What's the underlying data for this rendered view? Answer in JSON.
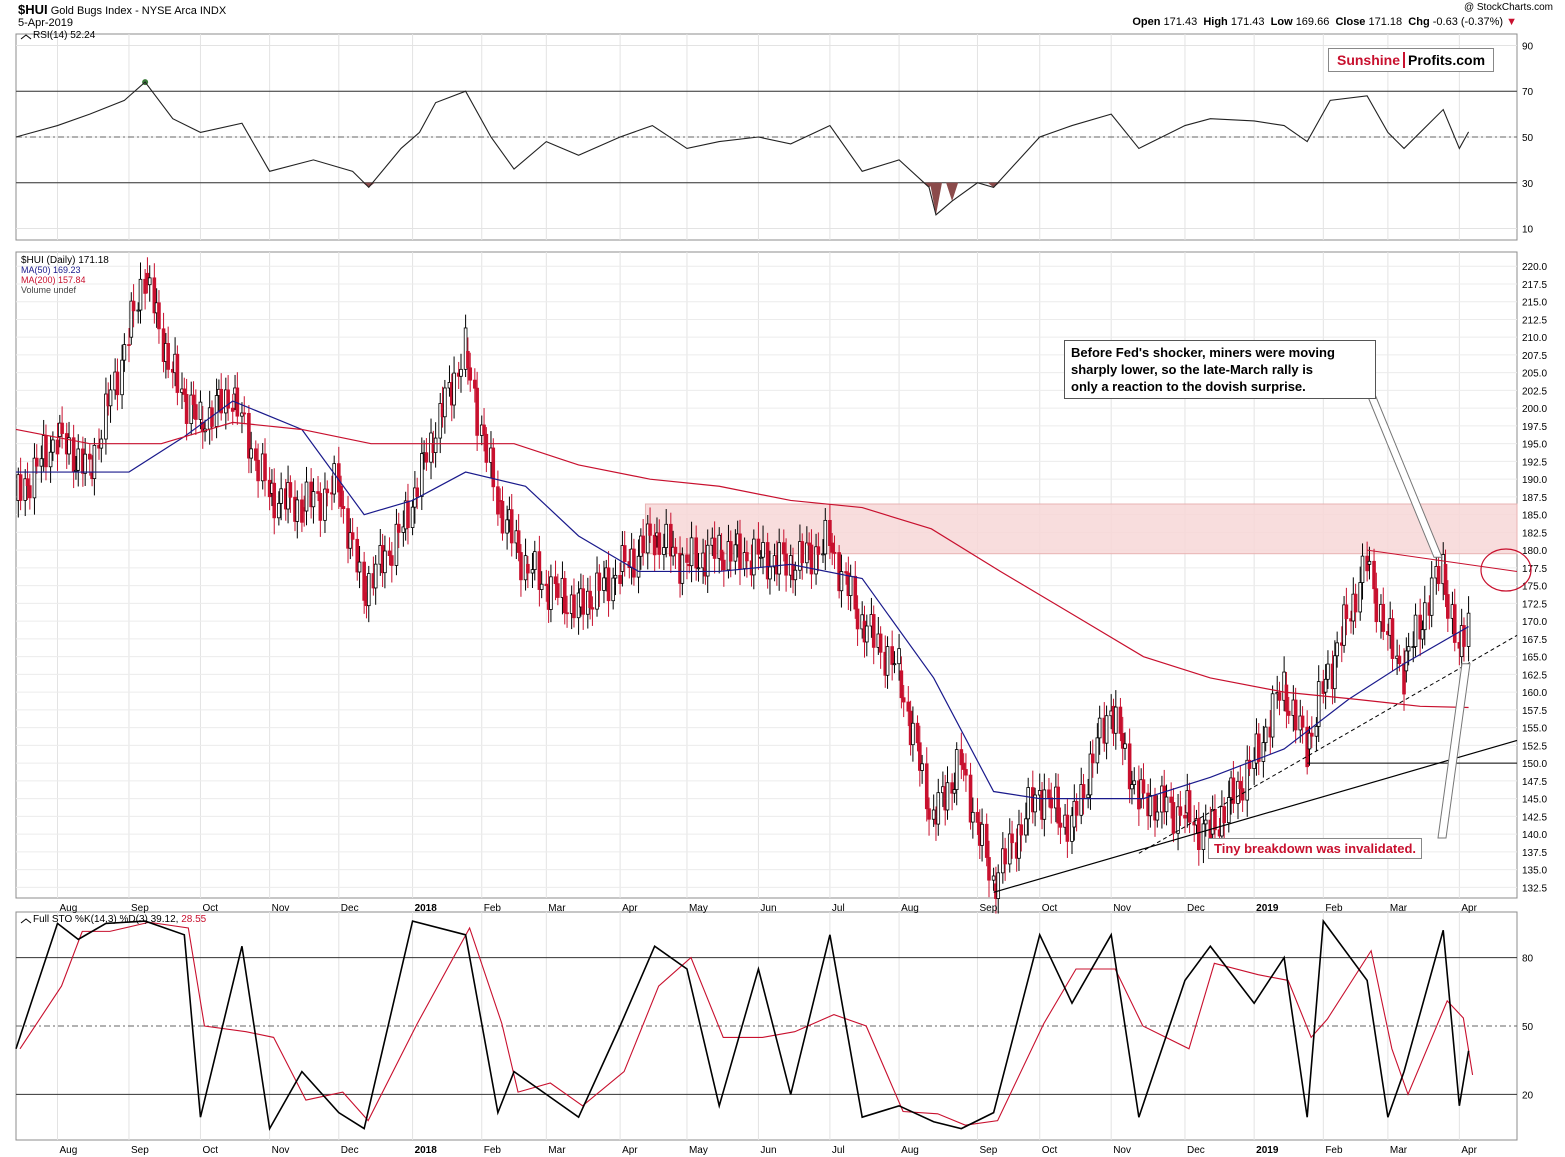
{
  "header": {
    "ticker": "$HUI",
    "name": "Gold Bugs Index - NYSE Arca INDX",
    "date": "5-Apr-2019",
    "watermark": "@ StockCharts.com",
    "open_label": "Open",
    "open": "171.43",
    "high_label": "High",
    "high": "171.43",
    "low_label": "Low",
    "low": "169.66",
    "close_label": "Close",
    "close": "171.18",
    "chg_label": "Chg",
    "chg": "-0.63 (-0.37%)"
  },
  "logo": {
    "part1": "Sunshine",
    "part2": "Profits.com"
  },
  "colors": {
    "up": "#000000",
    "down": "#c8102e",
    "ma50": "#1a1a8c",
    "ma200": "#c8102e",
    "zone": "#f7d7d7",
    "rsi_over": "#3a7a3a",
    "rsi_under": "#8b4b4b"
  },
  "rsi_panel": {
    "label": "RSI(14) 52.24",
    "axis_labels": [
      "90",
      "70",
      "50",
      "30",
      "10"
    ]
  },
  "price_panel": {
    "legend": [
      "$HUI (Daily) 171.18",
      "MA(50) 169.23",
      "MA(200) 157.84",
      "Volume undef"
    ],
    "axis_labels": [
      "220.0",
      "217.5",
      "215.0",
      "212.5",
      "210.0",
      "207.5",
      "205.0",
      "202.5",
      "200.0",
      "197.5",
      "195.0",
      "192.5",
      "190.0",
      "187.5",
      "185.0",
      "182.5",
      "180.0",
      "177.5",
      "175.0",
      "172.5",
      "170.0",
      "167.5",
      "165.0",
      "162.5",
      "160.0",
      "157.5",
      "155.0",
      "152.5",
      "150.0",
      "147.5",
      "145.0",
      "142.5",
      "140.0",
      "137.5",
      "135.0",
      "132.5"
    ]
  },
  "sto_panel": {
    "label_prefix": "Full STO %K(14,3) %D(3) 39.12,",
    "label_d": "28.55",
    "axis_labels": [
      "80",
      "50",
      "20"
    ]
  },
  "x_axis": {
    "months": [
      "Aug",
      "Sep",
      "Oct",
      "Nov",
      "Dec",
      "2018",
      "Feb",
      "Mar",
      "Apr",
      "May",
      "Jun",
      "Jul",
      "Aug",
      "Sep",
      "Oct",
      "Nov",
      "Dec",
      "2019",
      "Feb",
      "Mar",
      "Apr"
    ]
  },
  "annotations": {
    "fed_note": [
      "Before Fed's shocker, miners were moving",
      "sharply lower, so the late-March rally is",
      "only a reaction to the dovish surprise."
    ],
    "breakdown_note": "Tiny breakdown was invalidated."
  },
  "chart_data": {
    "type": "line",
    "title": "$HUI Gold Bugs Index - NYSE Arca INDX",
    "period": "Daily, Jul 2017 - 5-Apr-2019",
    "ylim": [
      131,
      222
    ],
    "log_scale": false,
    "grid": true,
    "series": [
      {
        "name": "$HUI (Daily)",
        "dates": [
          "2017-07-14",
          "2017-08-01",
          "2017-08-15",
          "2017-09-01",
          "2017-09-08",
          "2017-09-20",
          "2017-10-02",
          "2017-10-16",
          "2017-11-01",
          "2017-11-15",
          "2017-12-01",
          "2017-12-12",
          "2017-12-29",
          "2018-01-10",
          "2018-01-25",
          "2018-02-08",
          "2018-02-20",
          "2018-03-01",
          "2018-03-15",
          "2018-04-02",
          "2018-04-17",
          "2018-05-01",
          "2018-05-15",
          "2018-06-01",
          "2018-06-15",
          "2018-07-02",
          "2018-07-16",
          "2018-08-01",
          "2018-08-16",
          "2018-08-28",
          "2018-09-11",
          "2018-10-01",
          "2018-10-15",
          "2018-11-01",
          "2018-11-13",
          "2018-12-03",
          "2018-12-14",
          "2019-01-02",
          "2019-01-15",
          "2019-01-25",
          "2019-02-01",
          "2019-02-20",
          "2019-03-01",
          "2019-03-08",
          "2019-03-25",
          "2019-04-01",
          "2019-04-05"
        ],
        "values": [
          187,
          196,
          191,
          210,
          219,
          205,
          198,
          202,
          188,
          186,
          189,
          174,
          183,
          195,
          208,
          187,
          178,
          175,
          172,
          177,
          182,
          178,
          180,
          179,
          178,
          181,
          170,
          163,
          142,
          150,
          133,
          146,
          141,
          158,
          145,
          143,
          140,
          150,
          161,
          152,
          160,
          178,
          168,
          163,
          178,
          165,
          171.18
        ]
      },
      {
        "name": "MA(50)",
        "dates": [
          "2017-07-14",
          "2017-09-01",
          "2017-09-25",
          "2017-10-16",
          "2017-11-15",
          "2017-12-12",
          "2018-01-02",
          "2018-01-25",
          "2018-02-20",
          "2018-03-15",
          "2018-04-10",
          "2018-05-15",
          "2018-06-15",
          "2018-07-16",
          "2018-08-16",
          "2018-09-11",
          "2018-10-01",
          "2018-10-22",
          "2018-11-15",
          "2018-12-14",
          "2019-01-15",
          "2019-02-12",
          "2019-03-08",
          "2019-04-05"
        ],
        "values": [
          191,
          191,
          196,
          201,
          197,
          185,
          187,
          191,
          189,
          182,
          177,
          177,
          178,
          176,
          162,
          146,
          145,
          145,
          145,
          148,
          152,
          159,
          164,
          169.23
        ]
      },
      {
        "name": "MA(200)",
        "dates": [
          "2017-07-14",
          "2017-08-15",
          "2017-09-15",
          "2017-10-16",
          "2017-11-15",
          "2017-12-15",
          "2018-01-15",
          "2018-02-15",
          "2018-03-15",
          "2018-04-15",
          "2018-05-15",
          "2018-06-15",
          "2018-07-16",
          "2018-08-15",
          "2018-09-14",
          "2018-10-15",
          "2018-11-15",
          "2018-12-14",
          "2019-01-15",
          "2019-02-15",
          "2019-03-15",
          "2019-04-05"
        ],
        "values": [
          197,
          195,
          195,
          198,
          197,
          195,
          195,
          195,
          192,
          190,
          189,
          187,
          186,
          183,
          177,
          171,
          165,
          162,
          160,
          159,
          158,
          157.84
        ]
      }
    ],
    "rsi": {
      "name": "RSI(14)",
      "ylim": [
        5,
        95
      ],
      "dates": [
        "2017-07-14",
        "2017-08-01",
        "2017-08-15",
        "2017-08-30",
        "2017-09-08",
        "2017-09-20",
        "2017-10-02",
        "2017-10-20",
        "2017-11-01",
        "2017-11-20",
        "2017-12-07",
        "2017-12-14",
        "2017-12-28",
        "2018-01-05",
        "2018-01-12",
        "2018-01-25",
        "2018-02-05",
        "2018-02-15",
        "2018-03-01",
        "2018-03-15",
        "2018-04-02",
        "2018-04-16",
        "2018-05-01",
        "2018-05-15",
        "2018-06-01",
        "2018-06-15",
        "2018-07-02",
        "2018-07-16",
        "2018-08-01",
        "2018-08-14",
        "2018-08-17",
        "2018-08-24",
        "2018-09-04",
        "2018-09-11",
        "2018-10-01",
        "2018-10-15",
        "2018-11-01",
        "2018-11-13",
        "2018-12-03",
        "2018-12-14",
        "2019-01-02",
        "2019-01-15",
        "2019-01-25",
        "2019-02-04",
        "2019-02-20",
        "2019-03-01",
        "2019-03-08",
        "2019-03-25",
        "2019-04-01",
        "2019-04-05"
      ],
      "values": [
        50,
        55,
        60,
        66,
        74,
        58,
        52,
        56,
        35,
        40,
        35,
        28,
        45,
        52,
        65,
        70,
        50,
        36,
        48,
        42,
        50,
        55,
        45,
        48,
        50,
        47,
        55,
        35,
        40,
        28,
        16,
        22,
        30,
        28,
        50,
        55,
        60,
        45,
        55,
        58,
        57,
        55,
        48,
        66,
        68,
        52,
        45,
        62,
        45,
        52.24
      ],
      "levels": [
        70,
        50,
        30
      ]
    },
    "stochastic": {
      "name": "Full STO %K(14,3) %D(3)",
      "ylim": [
        0,
        100
      ],
      "k_dates": [
        "2017-07-14",
        "2017-08-01",
        "2017-08-10",
        "2017-08-22",
        "2017-09-08",
        "2017-09-25",
        "2017-10-02",
        "2017-10-20",
        "2017-11-01",
        "2017-11-15",
        "2017-12-01",
        "2017-12-12",
        "2018-01-02",
        "2018-01-25",
        "2018-02-08",
        "2018-02-15",
        "2018-03-01",
        "2018-03-15",
        "2018-04-02",
        "2018-04-17",
        "2018-05-01",
        "2018-05-15",
        "2018-06-01",
        "2018-06-15",
        "2018-07-02",
        "2018-07-16",
        "2018-08-01",
        "2018-08-16",
        "2018-08-28",
        "2018-09-11",
        "2018-10-01",
        "2018-10-15",
        "2018-11-01",
        "2018-11-13",
        "2018-12-03",
        "2018-12-14",
        "2019-01-02",
        "2019-01-15",
        "2019-01-25",
        "2019-02-01",
        "2019-02-20",
        "2019-03-01",
        "2019-03-08",
        "2019-03-25",
        "2019-04-01",
        "2019-04-05"
      ],
      "k_values": [
        40,
        95,
        88,
        95,
        96,
        90,
        10,
        85,
        5,
        30,
        12,
        5,
        96,
        90,
        12,
        30,
        20,
        10,
        50,
        85,
        75,
        15,
        75,
        20,
        90,
        10,
        15,
        8,
        5,
        12,
        90,
        60,
        90,
        10,
        70,
        85,
        60,
        80,
        10,
        96,
        70,
        10,
        30,
        92,
        15,
        39.12
      ],
      "d_final": 28.55,
      "levels": [
        80,
        50,
        20
      ]
    }
  }
}
